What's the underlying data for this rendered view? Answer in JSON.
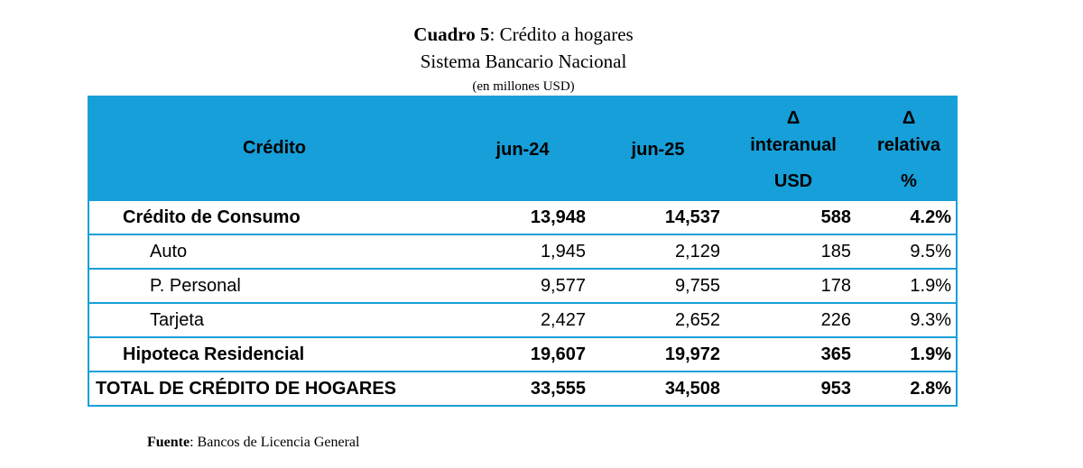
{
  "title": {
    "bold": "Cuadro 5",
    "rest": ": Crédito a hogares",
    "subtitle": "Sistema Bancario Nacional",
    "units": "(en millones USD)"
  },
  "header": {
    "credito": "Crédito",
    "jun24": "jun-24",
    "jun25": "jun-25",
    "delta_usd": [
      "Δ",
      "interanual",
      "USD"
    ],
    "delta_rel": [
      "Δ",
      "relativa",
      "%"
    ]
  },
  "rows": [
    {
      "label": "Crédito de Consumo",
      "jun24": "13,948",
      "jun25": "14,537",
      "d_usd": "588",
      "d_pct": "4.2%"
    },
    {
      "label": "Auto",
      "jun24": "1,945",
      "jun25": "2,129",
      "d_usd": "185",
      "d_pct": "9.5%"
    },
    {
      "label": "P. Personal",
      "jun24": "9,577",
      "jun25": "9,755",
      "d_usd": "178",
      "d_pct": "1.9%"
    },
    {
      "label": "Tarjeta",
      "jun24": "2,427",
      "jun25": "2,652",
      "d_usd": "226",
      "d_pct": "9.3%"
    },
    {
      "label": "Hipoteca Residencial",
      "jun24": "19,607",
      "jun25": "19,972",
      "d_usd": "365",
      "d_pct": "1.9%"
    },
    {
      "label": "TOTAL DE CRÉDITO DE HOGARES",
      "jun24": "33,555",
      "jun25": "34,508",
      "d_usd": "953",
      "d_pct": "2.8%"
    }
  ],
  "footer": {
    "bold": "Fuente",
    "rest": ":  Bancos de Licencia General"
  }
}
